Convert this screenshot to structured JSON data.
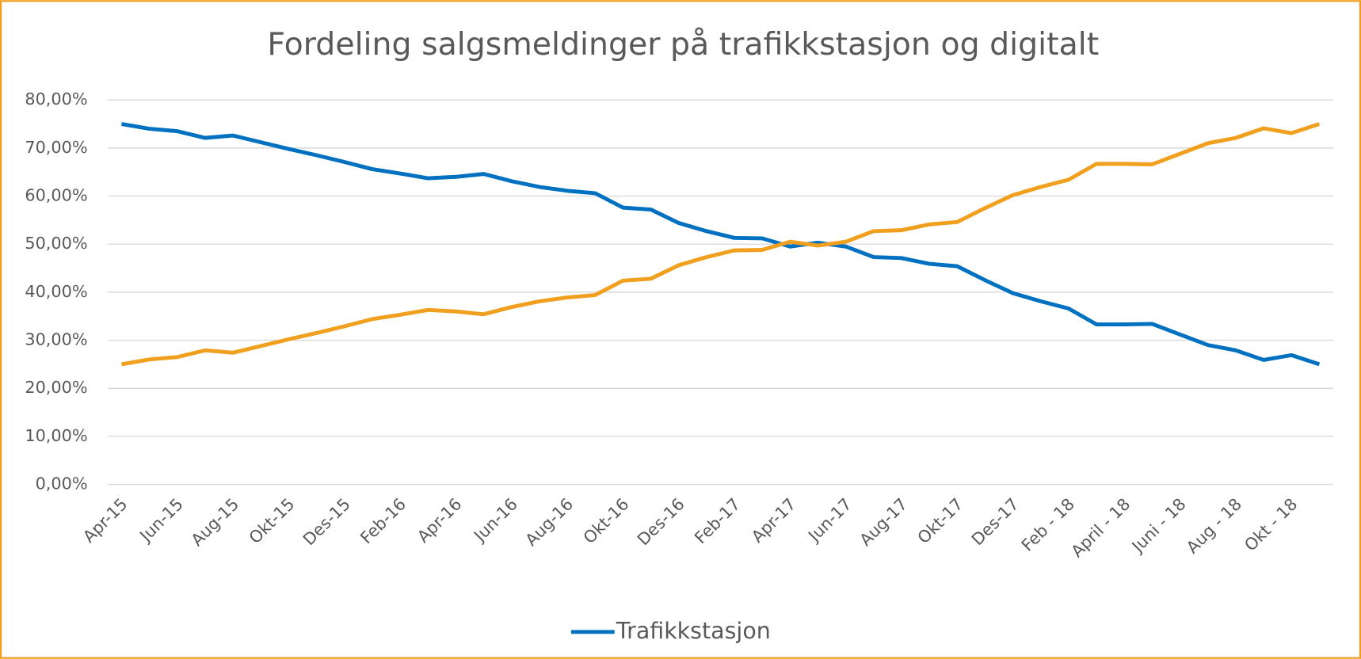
{
  "chart_data": {
    "type": "line",
    "title": "Fordeling salgsmeldinger på trafikkstasjon og digitalt",
    "categories": [
      "Apr-15",
      null,
      "Jun-15",
      null,
      "Aug-15",
      null,
      "Okt-15",
      null,
      "Des-15",
      null,
      "Feb-16",
      null,
      "Apr-16",
      null,
      "Jun-16",
      null,
      "Aug-16",
      null,
      "Okt-16",
      null,
      "Des-16",
      null,
      "Feb-17",
      null,
      "Apr-17",
      null,
      "Jun-17",
      null,
      "Aug-17",
      null,
      "Okt-17",
      null,
      "Des-17",
      null,
      "Feb - 18",
      null,
      "April - 18",
      null,
      "Juni - 18",
      null,
      "Aug - 18",
      null,
      "Okt - 18",
      null
    ],
    "series": [
      {
        "name": "Trafikkstasjon",
        "color": "#0070c0",
        "values": [
          75.0,
          74.0,
          73.5,
          72.1,
          72.6,
          71.2,
          69.8,
          68.5,
          67.1,
          65.6,
          64.7,
          63.7,
          64.0,
          64.6,
          63.1,
          61.9,
          61.1,
          60.6,
          57.6,
          57.2,
          54.4,
          52.7,
          51.3,
          51.2,
          49.5,
          50.3,
          49.5,
          47.3,
          47.1,
          45.9,
          45.4,
          42.5,
          39.8,
          38.1,
          36.6,
          33.3,
          33.3,
          33.4,
          31.2,
          29.0,
          27.9,
          25.9,
          26.9,
          25.0
        ]
      },
      {
        "color": "#f0a01e",
        "values": [
          25.0,
          26.0,
          26.5,
          27.9,
          27.4,
          28.8,
          30.2,
          31.5,
          32.9,
          34.4,
          35.3,
          36.3,
          36.0,
          35.4,
          36.9,
          38.1,
          38.9,
          39.4,
          42.4,
          42.8,
          45.6,
          47.3,
          48.7,
          48.8,
          50.5,
          49.7,
          50.5,
          52.7,
          52.9,
          54.1,
          54.6,
          57.5,
          60.2,
          61.9,
          63.4,
          66.7,
          66.7,
          66.6,
          68.8,
          71.0,
          72.1,
          74.1,
          73.1,
          75.0
        ]
      }
    ],
    "ylim": [
      0,
      80
    ],
    "yticks": [
      {
        "value": 0,
        "label": "0,00%"
      },
      {
        "value": 10,
        "label": "10,00%"
      },
      {
        "value": 20,
        "label": "20,00%"
      },
      {
        "value": 30,
        "label": "30,00%"
      },
      {
        "value": 40,
        "label": "40,00%"
      },
      {
        "value": 50,
        "label": "50,00%"
      },
      {
        "value": 60,
        "label": "60,00%"
      },
      {
        "value": 70,
        "label": "70,00%"
      },
      {
        "value": 80,
        "label": "80,00%"
      }
    ],
    "grid": true,
    "legend": "bottom"
  }
}
